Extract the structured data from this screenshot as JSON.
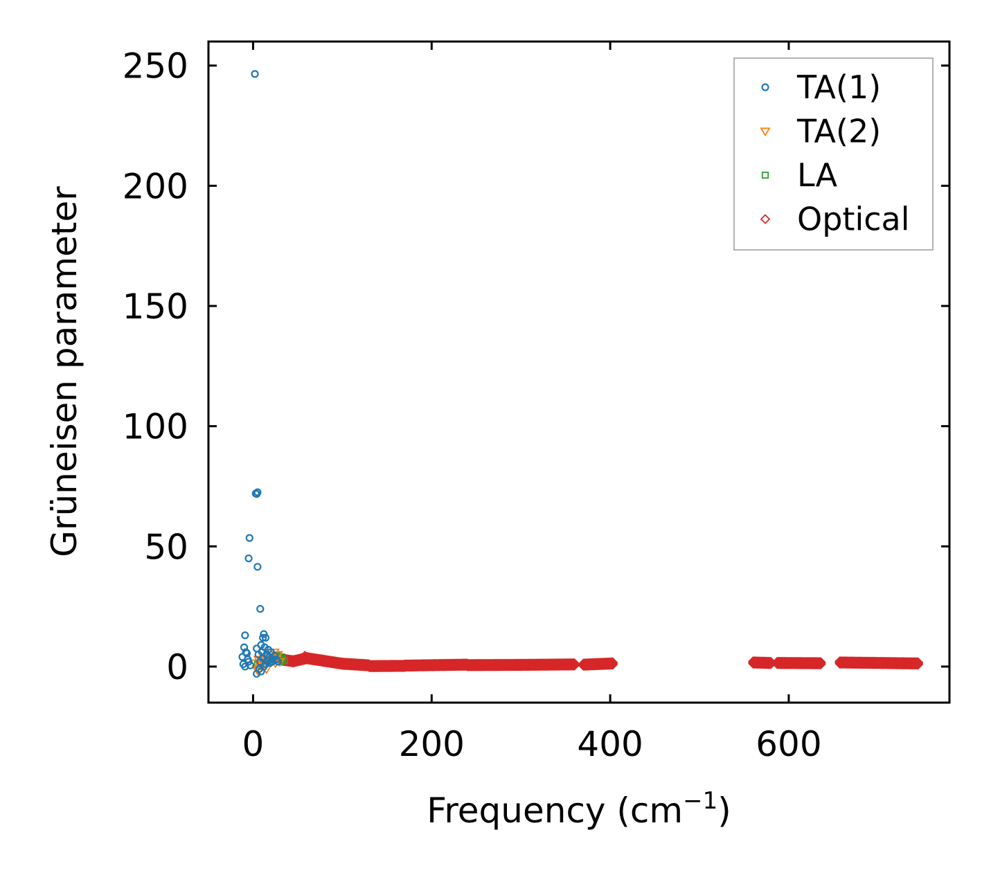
{
  "chart_data": {
    "type": "scatter",
    "title": "",
    "xlabel": "Frequency (cm",
    "xlabel_superscript": "−1",
    "xlabel_close": ")",
    "ylabel": "Grüneisen parameter",
    "xlim": [
      -50,
      780
    ],
    "ylim": [
      -15,
      260
    ],
    "xticks": [
      0,
      200,
      400,
      600
    ],
    "yticks": [
      0,
      50,
      100,
      150,
      200,
      250
    ],
    "grid": false,
    "legend_position": "top-right",
    "series": [
      {
        "name": "TA(1)",
        "marker": "circle",
        "color": "#1f77b4",
        "points": [
          [
            2,
            246.5
          ],
          [
            3,
            72
          ],
          [
            4,
            71.8
          ],
          [
            5,
            72.5
          ],
          [
            -4,
            53.5
          ],
          [
            -5,
            45
          ],
          [
            5,
            41.5
          ],
          [
            8,
            24
          ],
          [
            -9,
            13
          ],
          [
            12,
            13.5
          ],
          [
            11,
            12
          ],
          [
            14,
            12
          ],
          [
            -10,
            8
          ],
          [
            -12,
            4
          ],
          [
            -8,
            6
          ],
          [
            -6,
            3
          ],
          [
            -11,
            1
          ],
          [
            -9,
            0
          ],
          [
            -7,
            5.5
          ],
          [
            -5,
            2
          ],
          [
            -3,
            0.5
          ],
          [
            4,
            7.5
          ],
          [
            6,
            5
          ],
          [
            9,
            9
          ],
          [
            10,
            6
          ],
          [
            13,
            8
          ],
          [
            15,
            5
          ],
          [
            17,
            7
          ],
          [
            18,
            4
          ],
          [
            20,
            6
          ],
          [
            22,
            3
          ],
          [
            24,
            4.5
          ],
          [
            8,
            2
          ],
          [
            11,
            3.5
          ],
          [
            14,
            1
          ],
          [
            16,
            2.5
          ],
          [
            19,
            1.5
          ],
          [
            21,
            2
          ],
          [
            7,
            -1
          ],
          [
            9,
            -2
          ],
          [
            4,
            -3
          ],
          [
            12,
            0
          ],
          [
            26,
            3
          ],
          [
            28,
            2
          ]
        ]
      },
      {
        "name": "TA(2)",
        "marker": "triangle-down",
        "color": "#ff7f0e",
        "points": [
          [
            2,
            1.5
          ],
          [
            4,
            -1
          ],
          [
            6,
            3
          ],
          [
            8,
            0.5
          ],
          [
            10,
            2
          ],
          [
            12,
            4
          ],
          [
            14,
            1
          ],
          [
            16,
            3
          ],
          [
            18,
            5
          ],
          [
            20,
            2
          ],
          [
            22,
            4
          ],
          [
            24,
            6
          ],
          [
            26,
            3
          ],
          [
            28,
            5
          ],
          [
            30,
            2
          ],
          [
            25,
            1.5
          ],
          [
            15,
            -1
          ],
          [
            6,
            -2
          ]
        ]
      },
      {
        "name": "LA",
        "marker": "square",
        "color": "#2ca02c",
        "points": [
          [
            5,
            1
          ],
          [
            9,
            2
          ],
          [
            13,
            3
          ],
          [
            17,
            2.5
          ],
          [
            21,
            4
          ],
          [
            25,
            3
          ],
          [
            27,
            4.5
          ],
          [
            29,
            3.5
          ],
          [
            31,
            2
          ],
          [
            33,
            3
          ],
          [
            35,
            2.5
          ],
          [
            32,
            4
          ]
        ]
      },
      {
        "name": "Optical",
        "marker": "diamond",
        "color": "#d62728",
        "bands": [
          {
            "x_range": [
              30,
              45
            ],
            "y_start": 3,
            "y_end": 2.2
          },
          {
            "x_range": [
              45,
              60
            ],
            "y_start": 2.2,
            "y_end": 3.5
          },
          {
            "x_range": [
              60,
              100
            ],
            "y_start": 3.5,
            "y_end": 1.2
          },
          {
            "x_range": [
              100,
              130
            ],
            "y_start": 1.2,
            "y_end": 0.5
          },
          {
            "x_range": [
              130,
              170
            ],
            "y_start": 0.2,
            "y_end": 0.3
          },
          {
            "x_range": [
              170,
              240
            ],
            "y_start": 0.4,
            "y_end": 0.8
          },
          {
            "x_range": [
              240,
              300
            ],
            "y_start": 0.6,
            "y_end": 0.7
          },
          {
            "x_range": [
              300,
              360
            ],
            "y_start": 0.7,
            "y_end": 0.9
          },
          {
            "x_range": [
              370,
              403
            ],
            "y_start": 0.8,
            "y_end": 1.3
          },
          {
            "x_range": [
              560,
              580
            ],
            "y_start": 1.7,
            "y_end": 1.5
          },
          {
            "x_range": [
              587,
              636
            ],
            "y_start": 1.5,
            "y_end": 1.4
          },
          {
            "x_range": [
              657,
              745
            ],
            "y_start": 1.7,
            "y_end": 1.3
          }
        ],
        "peak_points": [
          [
            58,
            4.5
          ],
          [
            62,
            3.8
          ],
          [
            55,
            3.5
          ],
          [
            66,
            3.2
          ]
        ]
      }
    ]
  }
}
